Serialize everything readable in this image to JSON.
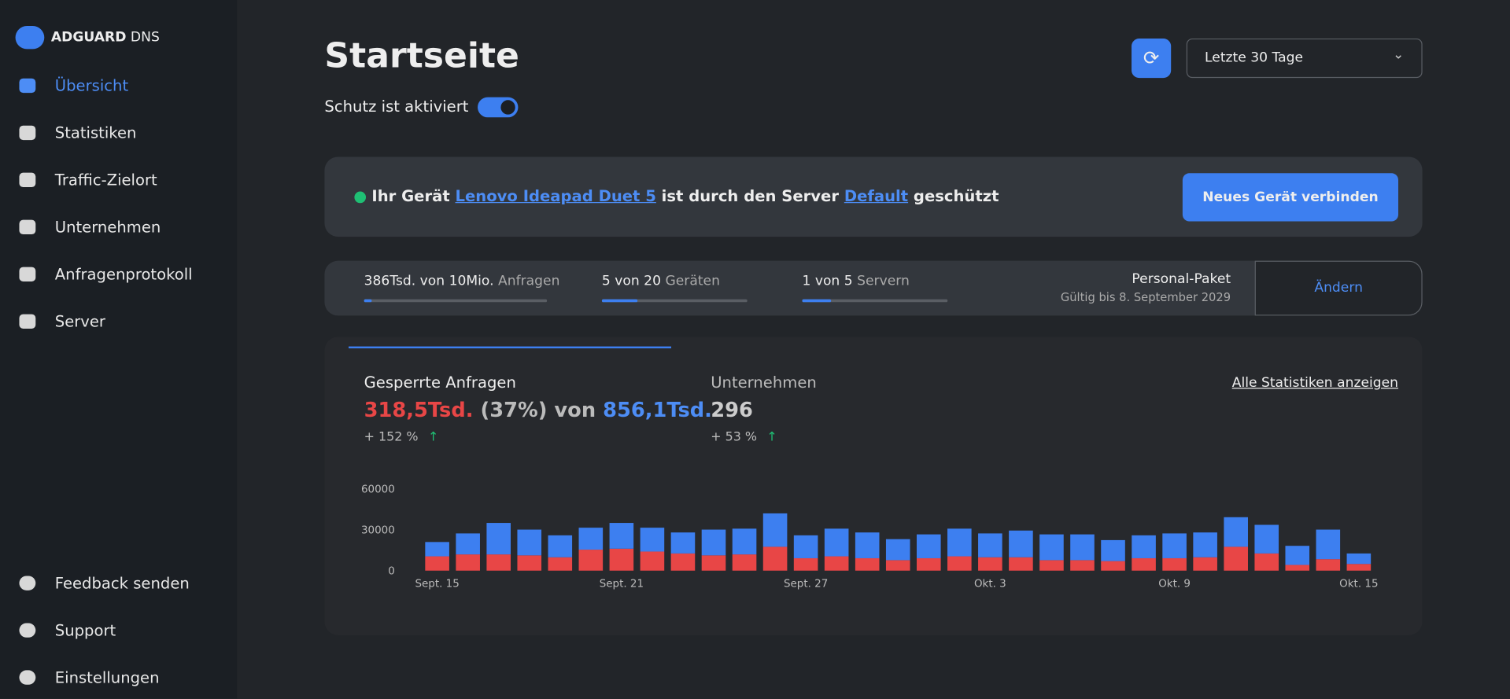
{
  "brand": {
    "name": "ADGUARD",
    "product": "DNS"
  },
  "nav": [
    "Übersicht",
    "Statistiken",
    "Traffic-Zielort",
    "Unternehmen",
    "Anfragenprotokoll",
    "Server"
  ],
  "nav_bottom": [
    "Feedback senden",
    "Support",
    "Einstellungen"
  ],
  "header": {
    "title": "Startseite",
    "protection": "Schutz ist aktiviert",
    "period": "Letzte 30 Tage"
  },
  "banner": {
    "prefix": "Ihr Gerät",
    "device": "Lenovo Ideapad Duet 5",
    "middle": "ist durch den Server",
    "server": "Default",
    "suffix": "geschützt",
    "button": "Neues Gerät verbinden"
  },
  "usage": [
    {
      "amount": "386Tsd. von 10Mio.",
      "unit": "Anfragen"
    },
    {
      "amount": "5 von 20",
      "unit": "Geräten"
    },
    {
      "amount": "1 von 5",
      "unit": "Servern"
    }
  ],
  "plan": {
    "name": "Personal-Paket",
    "valid": "Gültig bis 8. September 2029",
    "button": "Ändern"
  },
  "stats": {
    "blocked_label": "Gesperrte Anfragen",
    "blocked": "318,5Tsd.",
    "share": "(37%) von",
    "total": "856,1Tsd.",
    "blocked_change": "+ 152 %",
    "companies_label": "Unternehmen",
    "companies": "296",
    "companies_change": "+ 53 %",
    "link": "Alle Statistiken anzeigen"
  },
  "chart_data": {
    "type": "bar",
    "stacked": true,
    "categories": [
      "Sept. 15",
      null,
      null,
      null,
      null,
      null,
      "Sept. 21",
      null,
      null,
      null,
      null,
      null,
      "Sept. 27",
      null,
      null,
      null,
      null,
      null,
      "Okt. 3",
      null,
      null,
      null,
      null,
      null,
      "Okt. 9",
      null,
      null,
      null,
      null,
      null,
      "Okt. 15"
    ],
    "series": [
      {
        "color": "#e84646",
        "values": [
          10500,
          11900,
          11900,
          11200,
          9800,
          15400,
          16100,
          14000,
          12600,
          11200,
          11900,
          17500,
          9100,
          10500,
          9100,
          7700,
          9100,
          10500,
          9800,
          9800,
          7700,
          7700,
          7000,
          9100,
          9100,
          9800,
          17500,
          12600,
          4200,
          8400,
          4900
        ]
      },
      {
        "color": "#3d7ff0",
        "values": [
          10500,
          15400,
          23100,
          18900,
          16100,
          16100,
          18900,
          17500,
          15400,
          18900,
          18900,
          24500,
          16800,
          20300,
          18900,
          15400,
          17500,
          20300,
          17500,
          19600,
          18900,
          18900,
          15400,
          16800,
          18200,
          18200,
          21700,
          21000,
          14000,
          21700,
          7700
        ]
      }
    ],
    "ylim": [
      0,
      60000
    ],
    "yticks": [
      0,
      30000,
      60000
    ]
  }
}
